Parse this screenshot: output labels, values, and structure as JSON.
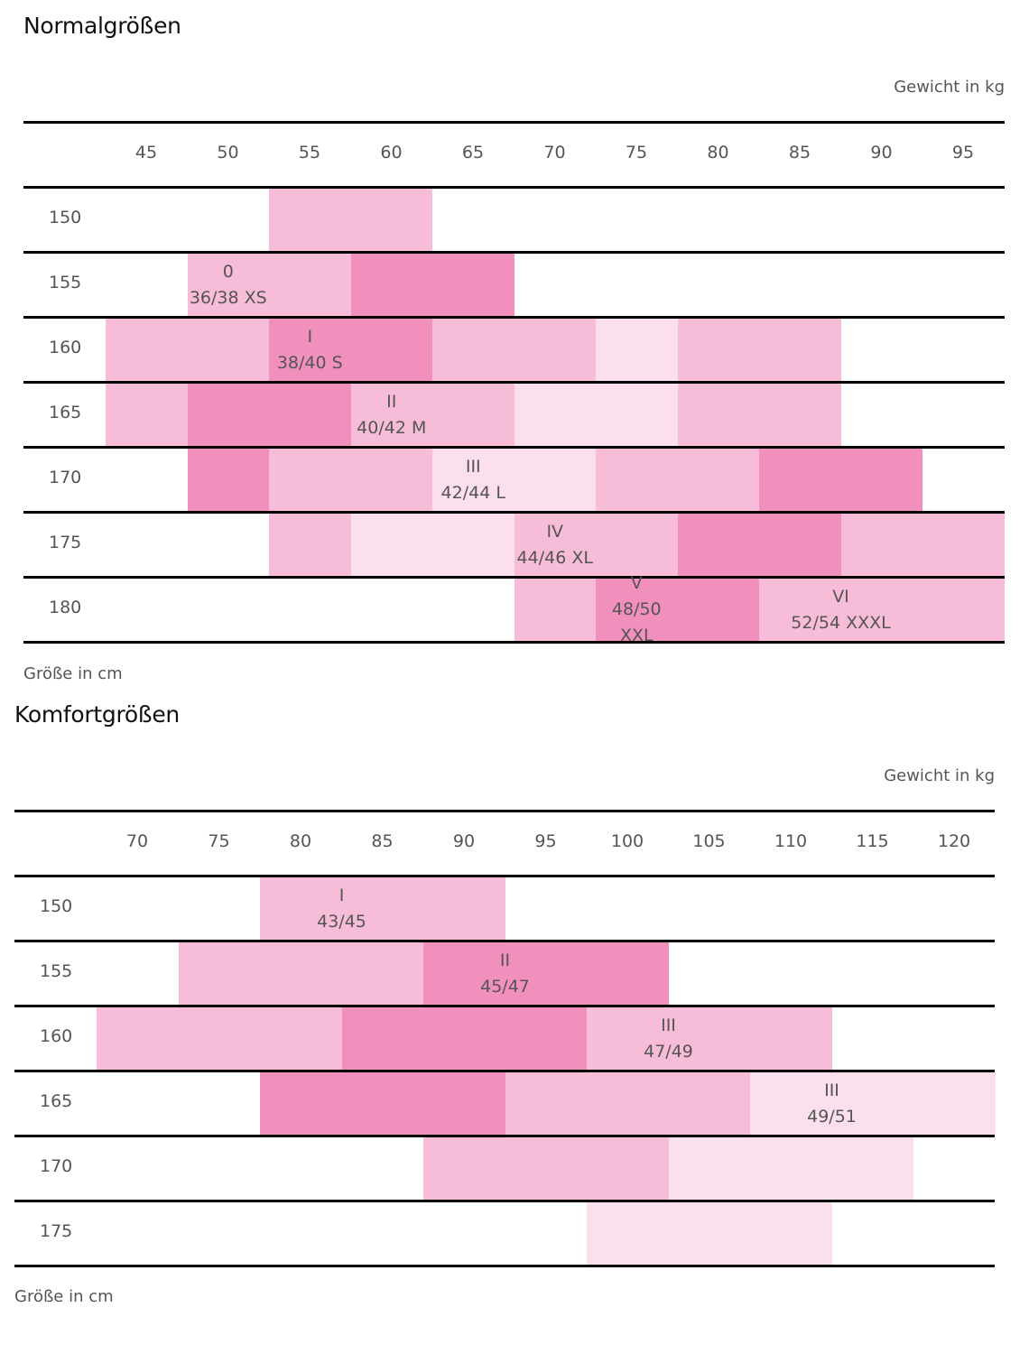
{
  "colors": {
    "lightest": "#fcdfec",
    "light": "#f7bcd7",
    "dark": "#f290bd",
    "line": "#000000"
  },
  "chart_data": [
    {
      "type": "heatmap",
      "title": "Normalgrößen",
      "xlabel": "Gewicht in kg",
      "ylabel": "Größe in cm",
      "x": [
        "45",
        "50",
        "55",
        "60",
        "65",
        "70",
        "75",
        "80",
        "85",
        "90",
        "95"
      ],
      "y": [
        "150",
        "155",
        "160",
        "165",
        "170",
        "175",
        "180"
      ],
      "shade_legend": {
        "0": "none",
        "1": "lightest",
        "2": "light",
        "3": "dark"
      },
      "cells": [
        [
          0,
          0,
          2,
          2,
          0,
          0,
          0,
          0,
          0,
          0,
          0
        ],
        [
          0,
          2,
          2,
          3,
          3,
          0,
          0,
          0,
          0,
          0,
          0
        ],
        [
          2,
          2,
          3,
          3,
          2,
          2,
          1,
          2,
          2,
          0,
          0
        ],
        [
          2,
          3,
          3,
          2,
          2,
          1,
          1,
          2,
          2,
          0,
          0
        ],
        [
          0,
          3,
          2,
          2,
          1,
          1,
          2,
          2,
          3,
          3,
          0
        ],
        [
          0,
          0,
          2,
          1,
          1,
          2,
          2,
          3,
          3,
          2,
          2
        ],
        [
          0,
          0,
          0,
          0,
          0,
          2,
          3,
          3,
          2,
          2,
          2
        ]
      ],
      "labels": [
        {
          "row": 1,
          "from": 1,
          "to": 2,
          "numeral": "0",
          "size": "36/38 XS"
        },
        {
          "row": 2,
          "from": 2,
          "to": 3,
          "numeral": "I",
          "size": "38/40 S"
        },
        {
          "row": 3,
          "from": 3,
          "to": 4,
          "numeral": "II",
          "size": "40/42 M"
        },
        {
          "row": 4,
          "from": 4,
          "to": 5,
          "numeral": "III",
          "size": "42/44 L"
        },
        {
          "row": 5,
          "from": 5,
          "to": 6,
          "numeral": "IV",
          "size": "44/46 XL"
        },
        {
          "row": 6,
          "from": 6,
          "to": 7,
          "numeral": "V",
          "size": "48/50 XXL"
        },
        {
          "row": 6,
          "from": 8,
          "to": 10,
          "numeral": "VI",
          "size": "52/54 XXXL"
        }
      ]
    },
    {
      "type": "heatmap",
      "title": "Komfortgrößen",
      "xlabel": "Gewicht in kg",
      "ylabel": "Größe in cm",
      "x": [
        "70",
        "75",
        "80",
        "85",
        "90",
        "95",
        "100",
        "105",
        "110",
        "115",
        "120"
      ],
      "y": [
        "150",
        "155",
        "160",
        "165",
        "170",
        "175"
      ],
      "shade_legend": {
        "0": "none",
        "1": "lightest",
        "2": "light",
        "3": "dark"
      },
      "cells": [
        [
          0,
          0,
          2,
          2,
          2,
          0,
          0,
          0,
          0,
          0,
          0
        ],
        [
          0,
          2,
          2,
          2,
          3,
          3,
          3,
          0,
          0,
          0,
          0
        ],
        [
          2,
          2,
          2,
          3,
          3,
          3,
          2,
          2,
          2,
          0,
          0
        ],
        [
          0,
          0,
          3,
          3,
          3,
          2,
          2,
          2,
          1,
          1,
          1
        ],
        [
          0,
          0,
          0,
          0,
          2,
          2,
          2,
          1,
          1,
          1,
          0
        ],
        [
          0,
          0,
          0,
          0,
          0,
          0,
          1,
          1,
          1,
          0,
          0
        ]
      ],
      "labels": [
        {
          "row": 0,
          "from": 2,
          "to": 4,
          "numeral": "I",
          "size": "43/45"
        },
        {
          "row": 1,
          "from": 4,
          "to": 6,
          "numeral": "II",
          "size": "45/47"
        },
        {
          "row": 2,
          "from": 6,
          "to": 8,
          "numeral": "III",
          "size": "47/49"
        },
        {
          "row": 3,
          "from": 8,
          "to": 10,
          "numeral": "III",
          "size": "49/51"
        }
      ]
    }
  ]
}
